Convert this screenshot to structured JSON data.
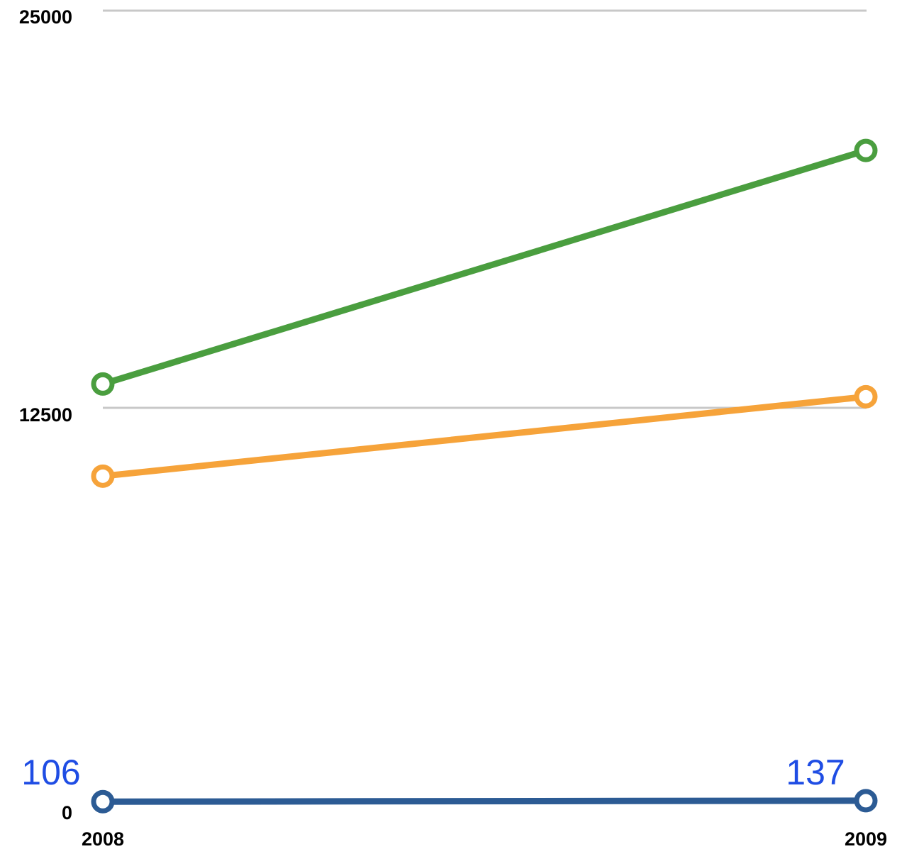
{
  "chart_data": {
    "type": "line",
    "title": "",
    "xlabel": "",
    "ylabel": "",
    "categories": [
      "2008",
      "2009"
    ],
    "ylim": [
      0,
      25000
    ],
    "yticks": [
      "0",
      "12500",
      "25000"
    ],
    "grid": true,
    "series": [
      {
        "color": "#4a9e3f",
        "values": [
          13250,
          20600
        ]
      },
      {
        "color": "#f6a33a",
        "values": [
          10350,
          12850
        ]
      },
      {
        "color": "#2c5b94",
        "values": [
          106,
          137
        ]
      }
    ],
    "data_labels": [
      {
        "series": 2,
        "index": 0,
        "text": "106"
      },
      {
        "series": 2,
        "index": 1,
        "text": "137"
      }
    ],
    "data_label_color": "#1f4de4"
  }
}
